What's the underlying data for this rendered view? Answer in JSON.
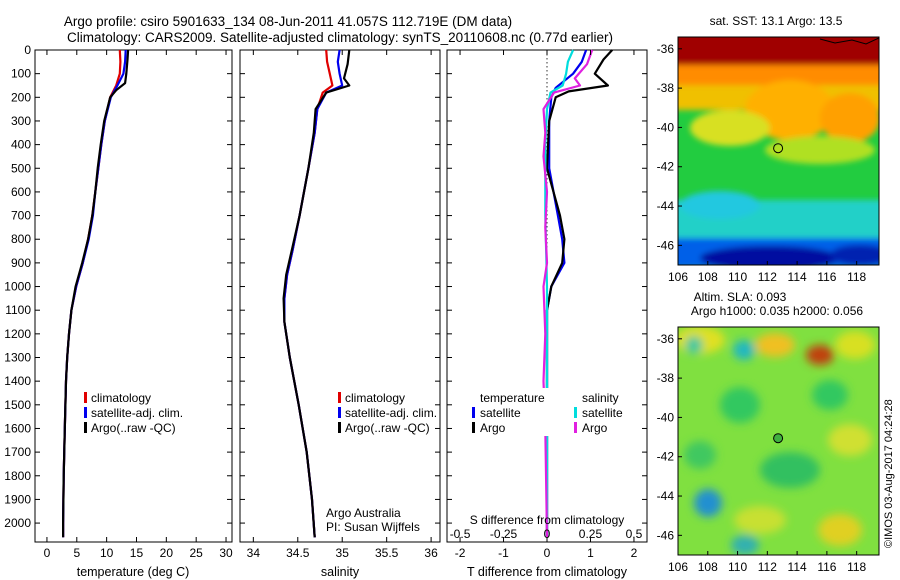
{
  "header": {
    "line1": "Argo profile: csiro 5901633_134 08-Jun-2011 41.057S 112.719E (DM data)",
    "line2": "Climatology: CARS2009. Satellite-adjusted climatology: synTS_20110608.nc (0.77d earlier)"
  },
  "colors": {
    "climatology": "#e00000",
    "satellite": "#0000ee",
    "argo": "#000000",
    "s_satellite": "#00dddd",
    "s_argo": "#e020e0"
  },
  "chart_data": [
    {
      "type": "line",
      "panel": "temperature",
      "xlabel": "temperature (deg C)",
      "ylabel": "",
      "xlim": [
        -2,
        31
      ],
      "ylim": [
        2080,
        0
      ],
      "xticks": [
        0,
        5,
        10,
        15,
        20,
        25,
        30
      ],
      "yticks": [
        0,
        100,
        200,
        300,
        400,
        500,
        600,
        700,
        800,
        900,
        1000,
        1100,
        1200,
        1300,
        1400,
        1500,
        1600,
        1700,
        1800,
        1900,
        2000
      ],
      "legend": [
        "climatology",
        "satellite-adj. clim.",
        "Argo(..raw -QC)"
      ],
      "series": [
        {
          "name": "climatology",
          "color": "#e00000",
          "depth": [
            0,
            50,
            100,
            150,
            200,
            300,
            400,
            500,
            600,
            700,
            800,
            900,
            1000,
            1100,
            1200,
            1300,
            1400,
            1600,
            1800,
            2000,
            2060
          ],
          "values": [
            12.2,
            12.3,
            12.2,
            11.6,
            10.6,
            9.7,
            9.1,
            8.6,
            8.1,
            7.6,
            6.9,
            6.0,
            4.9,
            4.1,
            3.7,
            3.4,
            3.2,
            3.0,
            2.8,
            2.7,
            2.7
          ]
        },
        {
          "name": "satellite-adj. clim.",
          "color": "#0000ee",
          "depth": [
            0,
            50,
            100,
            150,
            200,
            300,
            400,
            500,
            600,
            700,
            800,
            900,
            1000,
            1100,
            1200,
            1300,
            1400,
            1600,
            1800,
            2000,
            2060
          ],
          "values": [
            13.2,
            13.1,
            12.8,
            11.8,
            10.7,
            9.7,
            9.1,
            8.6,
            8.1,
            7.7,
            7.0,
            6.0,
            4.9,
            4.1,
            3.7,
            3.4,
            3.2,
            3.0,
            2.8,
            2.7,
            2.7
          ]
        },
        {
          "name": "Argo(..raw -QC)",
          "color": "#000000",
          "depth": [
            0,
            40,
            100,
            140,
            170,
            200,
            300,
            400,
            500,
            600,
            700,
            800,
            900,
            1000,
            1100,
            1200,
            1300,
            1400,
            1600,
            1800,
            2000,
            2060
          ],
          "values": [
            13.6,
            13.5,
            13.3,
            13.1,
            11.6,
            10.6,
            9.6,
            9.0,
            8.5,
            8.1,
            7.6,
            6.9,
            5.9,
            4.8,
            4.1,
            3.7,
            3.4,
            3.2,
            3.0,
            2.8,
            2.7,
            2.7
          ]
        }
      ]
    },
    {
      "type": "line",
      "panel": "salinity",
      "xlabel": "salinity",
      "ylabel": "",
      "xlim": [
        33.85,
        36.1
      ],
      "ylim": [
        2080,
        0
      ],
      "xticks": [
        34,
        34.5,
        35,
        35.5,
        36
      ],
      "legend": [
        "climatology",
        "satellite-adj. clim.",
        "Argo(..raw -QC)"
      ],
      "annotation": [
        "Argo Australia",
        "PI: Susan Wijffels"
      ],
      "series": [
        {
          "name": "climatology",
          "color": "#e00000",
          "depth": [
            0,
            50,
            100,
            150,
            180,
            250,
            350,
            500,
            700,
            850,
            950,
            1050,
            1150,
            1300,
            1500,
            1700,
            1900,
            2060
          ],
          "values": [
            34.82,
            34.83,
            34.86,
            34.89,
            34.78,
            34.72,
            34.69,
            34.62,
            34.52,
            34.44,
            34.38,
            34.35,
            34.35,
            34.41,
            34.51,
            34.6,
            34.66,
            34.69
          ]
        },
        {
          "name": "satellite-adj. clim.",
          "color": "#0000ee",
          "depth": [
            0,
            50,
            100,
            150,
            180,
            250,
            350,
            500,
            700,
            850,
            950,
            1050,
            1150,
            1300,
            1500,
            1700,
            1900,
            2060
          ],
          "values": [
            34.97,
            34.95,
            34.97,
            35.0,
            34.82,
            34.72,
            34.69,
            34.62,
            34.52,
            34.44,
            34.38,
            34.35,
            34.35,
            34.41,
            34.51,
            34.6,
            34.66,
            34.69
          ]
        },
        {
          "name": "Argo(..raw -QC)",
          "color": "#000000",
          "depth": [
            0,
            60,
            120,
            150,
            180,
            250,
            350,
            500,
            700,
            850,
            950,
            1050,
            1150,
            1300,
            1500,
            1700,
            1900,
            2060
          ],
          "values": [
            35.08,
            35.06,
            35.02,
            35.08,
            34.82,
            34.7,
            34.68,
            34.62,
            34.52,
            34.43,
            34.37,
            34.34,
            34.35,
            34.41,
            34.51,
            34.6,
            34.66,
            34.69
          ]
        }
      ]
    },
    {
      "type": "line",
      "panel": "difference",
      "xlabel": "T difference from climatology",
      "xlabel_top": "S difference from climatology",
      "xlim": [
        -2.3,
        2.3
      ],
      "ylim": [
        2080,
        0
      ],
      "xticks": [
        -2,
        -1,
        0,
        1,
        2
      ],
      "xtick_labels_top": [
        "-0.5",
        "-0.25",
        "0",
        "0.25",
        "0.5"
      ],
      "legend_headings": [
        "temperature",
        "salinity"
      ],
      "legend": [
        "satellite",
        "Argo",
        "satellite",
        "Argo"
      ],
      "series": [
        {
          "name": "satellite",
          "quantity": "temperature",
          "color": "#0000ee",
          "depth": [
            0,
            50,
            100,
            160,
            200,
            300,
            500,
            700,
            800,
            900,
            1000,
            1100,
            1300,
            1500,
            1800,
            2060
          ],
          "values": [
            0.9,
            0.8,
            0.6,
            0.2,
            0.1,
            0.05,
            0.05,
            0.25,
            0.35,
            0.4,
            0.1,
            0.0,
            0.0,
            0.0,
            0.0,
            0.0
          ]
        },
        {
          "name": "Argo",
          "quantity": "temperature",
          "color": "#000000",
          "depth": [
            0,
            40,
            100,
            150,
            175,
            200,
            300,
            500,
            700,
            800,
            900,
            1000,
            1100,
            1300,
            1500,
            1800,
            2060
          ],
          "values": [
            1.5,
            1.3,
            1.1,
            1.4,
            0.5,
            0.2,
            0.05,
            0.0,
            0.3,
            0.4,
            0.35,
            0.1,
            0.0,
            0.0,
            0.0,
            0.0,
            0.0
          ]
        },
        {
          "name": "satellite",
          "quantity": "salinity",
          "color": "#00dddd",
          "depth": [
            0,
            50,
            100,
            150,
            180,
            250,
            400,
            700,
            1000,
            1300,
            1600,
            2060
          ],
          "values": [
            0.15,
            0.12,
            0.11,
            0.09,
            0.02,
            0.0,
            -0.01,
            -0.01,
            0.0,
            0.0,
            0.0,
            0.0
          ]
        },
        {
          "name": "Argo",
          "quantity": "salinity",
          "color": "#e020e0",
          "depth": [
            0,
            60,
            120,
            150,
            180,
            250,
            350,
            450,
            600,
            750,
            900,
            1000,
            1200,
            1400,
            1600,
            2060
          ],
          "values": [
            0.26,
            0.23,
            0.16,
            0.19,
            0.04,
            -0.02,
            -0.01,
            -0.02,
            0.0,
            -0.01,
            0.0,
            -0.02,
            -0.01,
            -0.02,
            -0.01,
            0.0
          ]
        }
      ]
    },
    {
      "type": "heatmap",
      "panel": "sst_map",
      "title": "sat. SST: 13.1  Argo: 13.5",
      "xlim": [
        106,
        119.5
      ],
      "ylim": [
        -47,
        -35.4
      ],
      "xticks": [
        106,
        108,
        110,
        112,
        114,
        116,
        118
      ],
      "yticks": [
        -36,
        -38,
        -40,
        -42,
        -44,
        -46
      ],
      "marker": {
        "lon": 112.72,
        "lat": -41.06
      }
    },
    {
      "type": "heatmap",
      "panel": "sla_map",
      "title_lines": [
        "Altim. SLA: 0.093",
        "Argo h1000: 0.035 h2000: 0.056"
      ],
      "xlim": [
        106,
        119.5
      ],
      "ylim": [
        -47,
        -35.4
      ],
      "xticks": [
        106,
        108,
        110,
        112,
        114,
        116,
        118
      ],
      "yticks": [
        -36,
        -38,
        -40,
        -42,
        -44,
        -46
      ],
      "marker": {
        "lon": 112.72,
        "lat": -41.06
      }
    }
  ],
  "footer": {
    "watermark": "©IMOS 03-Aug-2017 04:24:28"
  }
}
